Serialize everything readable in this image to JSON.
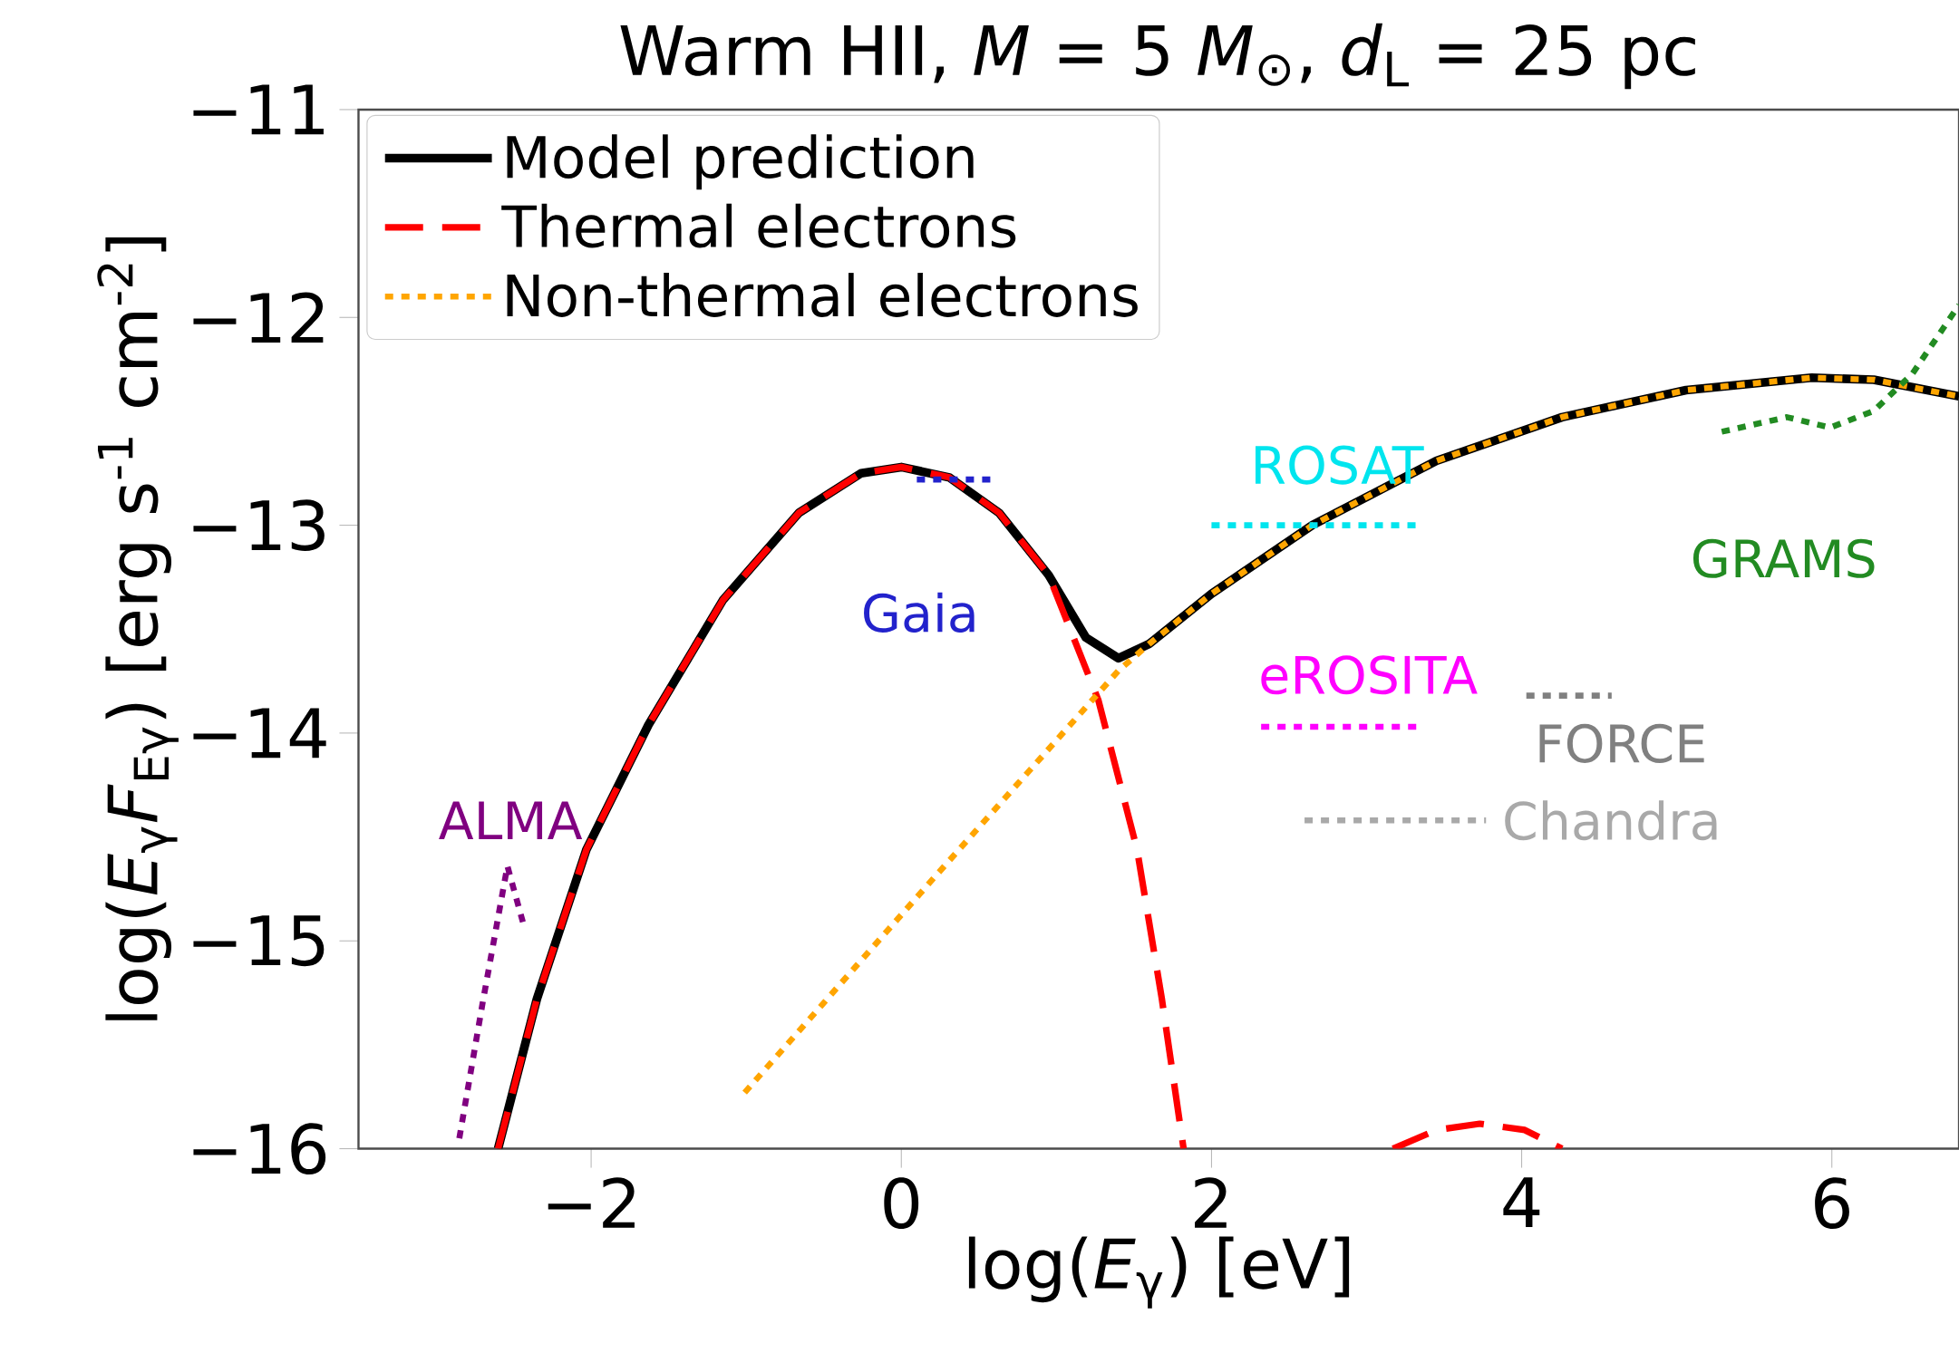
{
  "chart_data": {
    "type": "line",
    "title": "Warm HII, *M* = 5 *M*$_{⊙}$, *d*$_{L}$ = 25 pc",
    "xlabel": "log(*E*$_{γ}$) [eV]",
    "ylabel": "log(*E*$_{γ}$*F*$_{Eγ}$) [erg s$^{-1}$ cm$^{-2}$]",
    "xlim": [
      -3.5,
      6.82
    ],
    "ylim": [
      -16,
      -11
    ],
    "xticks": [
      {
        "value": -2,
        "label": "−2"
      },
      0,
      2,
      4,
      6
    ],
    "yticks": [
      {
        "value": -16,
        "label": "−16"
      },
      {
        "value": -15,
        "label": "−15"
      },
      {
        "value": -14,
        "label": "−14"
      },
      {
        "value": -13,
        "label": "−13"
      },
      {
        "value": -12,
        "label": "−12"
      },
      {
        "value": -11,
        "label": "−11"
      }
    ],
    "legend": "top left",
    "grid": false,
    "marker": "none",
    "series": [
      {
        "name": "Model prediction",
        "color": "#000000",
        "line_style": "solid",
        "x": [
          -2.6,
          -2.35,
          -2.03,
          -1.63,
          -1.15,
          -0.66,
          -0.26,
          0,
          0.31,
          0.63,
          0.95,
          1.19,
          1.4,
          1.6,
          2.0,
          2.65,
          3.45,
          4.26,
          5.06,
          5.87,
          6.27,
          6.82
        ],
        "values": [
          -16,
          -15.28,
          -14.56,
          -13.96,
          -13.36,
          -12.94,
          -12.75,
          -12.72,
          -12.77,
          -12.94,
          -13.24,
          -13.54,
          -13.64,
          -13.57,
          -13.33,
          -13.0,
          -12.69,
          -12.48,
          -12.35,
          -12.29,
          -12.3,
          -12.38
        ]
      },
      {
        "name": "Thermal electrons",
        "color": "#ff0000",
        "line_style": "dashed",
        "x": [
          -2.6,
          -2.35,
          -2.03,
          -1.63,
          -1.15,
          -0.66,
          -0.26,
          0,
          0.31,
          0.63,
          0.95,
          1.27,
          1.52,
          1.68,
          1.82,
          2.5,
          3.17,
          3.45,
          3.73,
          4.02,
          4.26
        ],
        "values": [
          -16,
          -15.28,
          -14.56,
          -13.96,
          -13.36,
          -12.94,
          -12.75,
          -12.72,
          -12.77,
          -12.94,
          -13.24,
          -13.84,
          -14.56,
          -15.28,
          -16,
          null,
          -16,
          -15.91,
          -15.88,
          -15.91,
          -16
        ]
      },
      {
        "name": "Non-thermal electrons",
        "color": "#ffa500",
        "line_style": "dotted",
        "x": [
          -1.01,
          0.23,
          1.4,
          1.6,
          2.0,
          2.65,
          3.45,
          4.26,
          5.06,
          5.87,
          6.27,
          6.82
        ],
        "values": [
          -15.73,
          -14.68,
          -13.7,
          -13.57,
          -13.33,
          -13.0,
          -12.69,
          -12.48,
          -12.35,
          -12.29,
          -12.3,
          -12.38
        ]
      },
      {
        "name": "ALMA",
        "color": "#800080",
        "line_style": "dotted",
        "x": [
          -2.85,
          -2.7,
          -2.54,
          -2.44
        ],
        "values": [
          -15.95,
          -15.3,
          -14.64,
          -14.91
        ]
      },
      {
        "name": "Gaia",
        "color": "#2222cc",
        "line_style": "dotted",
        "x": [
          0.1,
          0.59
        ],
        "values": [
          -12.78,
          -12.78
        ]
      },
      {
        "name": "ROSAT",
        "color": "#00e5ee",
        "line_style": "dotted",
        "x": [
          2.0,
          3.33
        ],
        "values": [
          -13.0,
          -13.0
        ]
      },
      {
        "name": "eROSITA",
        "color": "#ff00ff",
        "line_style": "dotted",
        "x": [
          2.32,
          3.33
        ],
        "values": [
          -13.97,
          -13.97
        ]
      },
      {
        "name": "FORCE",
        "color": "#808080",
        "line_style": "dotted",
        "x": [
          4.03,
          4.58
        ],
        "values": [
          -13.82,
          -13.82
        ]
      },
      {
        "name": "Chandra",
        "color": "#a9a9a9",
        "line_style": "dotted",
        "x": [
          2.6,
          3.77
        ],
        "values": [
          -14.42,
          -14.42
        ]
      },
      {
        "name": "GRAMS",
        "color": "#228b22",
        "line_style": "dotted",
        "x": [
          5.29,
          5.71,
          5.99,
          6.27,
          6.52,
          6.72,
          6.82
        ],
        "values": [
          -12.55,
          -12.48,
          -12.53,
          -12.45,
          -12.27,
          -12.05,
          -11.94
        ]
      }
    ]
  }
}
